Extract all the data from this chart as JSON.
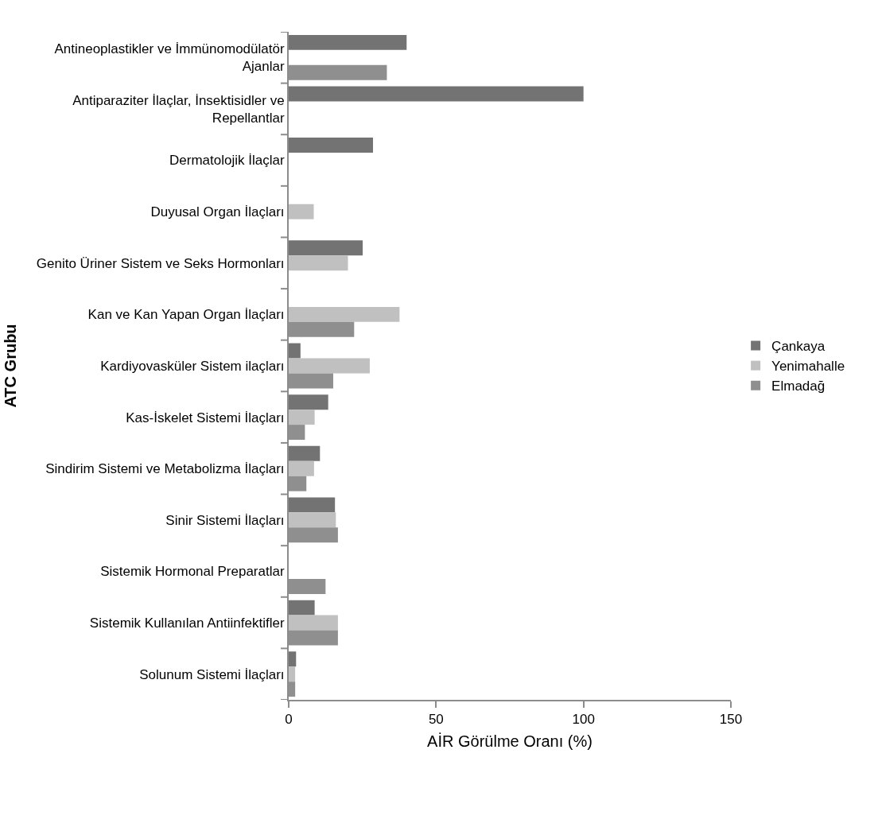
{
  "chart_data": {
    "type": "bar",
    "orientation": "horizontal",
    "xlabel": "AİR Görülme Oranı (%)",
    "ylabel": "ATC Grubu",
    "categories": [
      "Antineoplastikler ve İmmünomodülatör Ajanlar",
      "Antiparaziter İlaçlar, İnsektisidler ve Repellantlar",
      "Dermatolojik İlaçlar",
      "Duyusal Organ İlaçları",
      "Genito Üriner Sistem ve Seks Hormonları",
      "Kan ve Kan Yapan Organ İlaçları",
      "Kardiyovasküler Sistem ilaçları",
      "Kas-İskelet Sistemi İlaçları",
      "Sindirim Sistemi ve Metabolizma İlaçları",
      "Sinir Sistemi İlaçları",
      "Sistemik Hormonal Preparatlar",
      "Sistemik Kullanılan Antiinfektifler",
      "Solunum Sistemi İlaçları"
    ],
    "series": [
      {
        "name": "Çankaya",
        "color": "#737373",
        "values": [
          40,
          100,
          28.6,
          null,
          25.1,
          null,
          4.0,
          13.4,
          10.6,
          15.7,
          null,
          8.8,
          2.5
        ]
      },
      {
        "name": "Yenimahalle",
        "color": "#c0c0c0",
        "values": [
          null,
          null,
          null,
          8.5,
          20.1,
          37.6,
          27.5,
          8.8,
          8.6,
          16.0,
          null,
          16.7,
          2.2
        ]
      },
      {
        "name": "Elmadağ",
        "color": "#8f8f8f",
        "values": [
          33.3,
          null,
          null,
          null,
          null,
          22.2,
          15.1,
          5.5,
          6.0,
          16.7,
          12.5,
          16.7,
          2.2
        ]
      }
    ],
    "xlim": [
      0,
      150
    ],
    "xticks": [
      0,
      50,
      100,
      150
    ],
    "legend": "right"
  }
}
